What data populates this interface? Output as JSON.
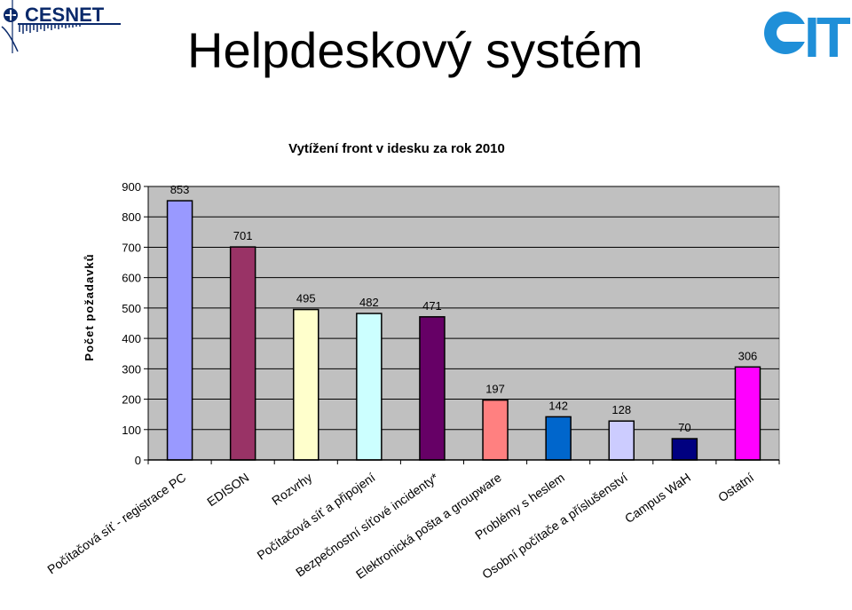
{
  "page": {
    "title": "Helpdeskový systém",
    "logos": {
      "left": {
        "text": "CESNET",
        "icon": "cesnet-logo-icon"
      },
      "right": {
        "text": "IT",
        "icon": "cit-logo-icon"
      }
    }
  },
  "colors": {
    "plot_bg": "#c0c0c0",
    "grid": "#000000"
  },
  "chart_data": {
    "type": "bar",
    "title": "Vytížení front v idesku za rok 2010",
    "ylabel": "Počet požadavků",
    "xlabel": "",
    "ylim": [
      0,
      900
    ],
    "yticks": [
      0,
      100,
      200,
      300,
      400,
      500,
      600,
      700,
      800,
      900
    ],
    "grid": true,
    "legend": "none",
    "categories": [
      "Počítačová síť - registrace PC",
      "EDISON",
      "Rozvrhy",
      "Počítačová síť a připojení",
      "Bezpečnostní síťové incidenty*",
      "Elektronická pošta a groupware",
      "Problémy s heslem",
      "Osobní počítače a příslušenství",
      "Campus WaH",
      "Ostatní"
    ],
    "values": [
      853,
      701,
      495,
      482,
      471,
      197,
      142,
      128,
      70,
      306
    ],
    "bar_colors": [
      "#9999ff",
      "#993366",
      "#ffffcc",
      "#ccffff",
      "#660066",
      "#ff8080",
      "#0066cc",
      "#ccccff",
      "#000080",
      "#ff00ff"
    ]
  }
}
